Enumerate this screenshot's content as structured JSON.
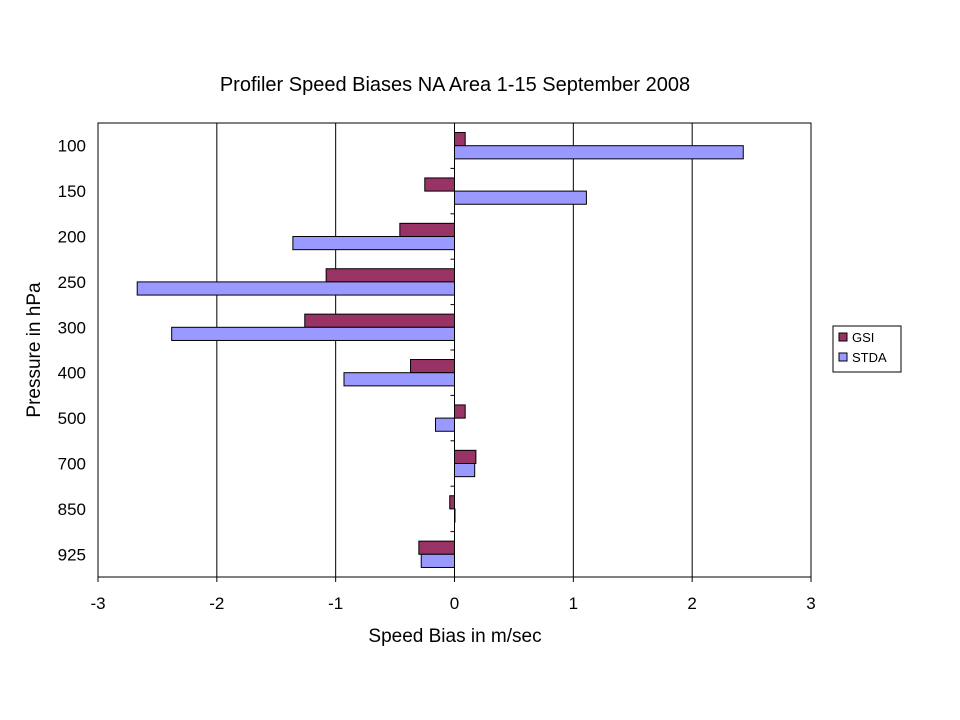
{
  "chart_data": {
    "type": "bar",
    "orientation": "horizontal",
    "title": "Profiler Speed Biases NA Area 1-15 September 2008",
    "xlabel": "Speed Bias in m/sec",
    "ylabel": "Pressure in hPa",
    "categories": [
      "100",
      "150",
      "200",
      "250",
      "300",
      "400",
      "500",
      "700",
      "850",
      "925"
    ],
    "xlim": [
      -3,
      3
    ],
    "xticks": [
      "-3",
      "-2",
      "-1",
      "0",
      "1",
      "2",
      "3"
    ],
    "grid": true,
    "legend_position": "right",
    "series": [
      {
        "name": "GSI",
        "color": "#993366",
        "values": [
          0.09,
          -0.25,
          -0.46,
          -1.08,
          -1.26,
          -0.37,
          0.09,
          0.18,
          -0.04,
          -0.3
        ]
      },
      {
        "name": "STDA",
        "color": "#9999ff",
        "values": [
          2.43,
          1.11,
          -1.36,
          -2.67,
          -2.38,
          -0.93,
          -0.16,
          0.17,
          0.0,
          -0.28
        ]
      }
    ]
  }
}
